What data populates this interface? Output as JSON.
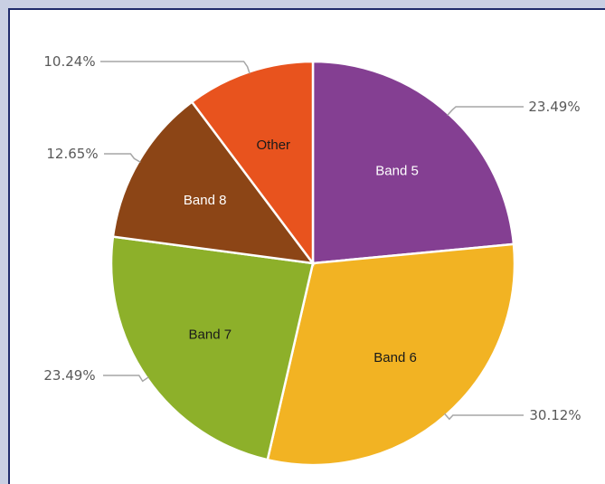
{
  "chart_data": {
    "type": "pie",
    "title": "",
    "start_angle_deg": 0,
    "direction": "clockwise",
    "slices": [
      {
        "label": "Band 5",
        "value": 23.49,
        "value_label": "23.49%",
        "color": "#843f92",
        "label_color": "#ffffff"
      },
      {
        "label": "Band 6",
        "value": 30.12,
        "value_label": "30.12%",
        "color": "#f2b323",
        "label_color": "#1a1a1a"
      },
      {
        "label": "Band 7",
        "value": 23.49,
        "value_label": "23.49%",
        "color": "#8db02a",
        "label_color": "#1a1a1a"
      },
      {
        "label": "Band 8",
        "value": 12.65,
        "value_label": "12.65%",
        "color": "#8c4516",
        "label_color": "#ffffff"
      },
      {
        "label": "Other",
        "value": 10.24,
        "value_label": "10.24%",
        "color": "#e8531e",
        "label_color": "#1a1a1a"
      }
    ],
    "leader_line_color": "#a6a6a6",
    "slice_border_color": "#ffffff"
  },
  "colors": {
    "page_background": "#c9cfe3",
    "panel_background": "#ffffff",
    "panel_border": "#1f2a6b"
  }
}
